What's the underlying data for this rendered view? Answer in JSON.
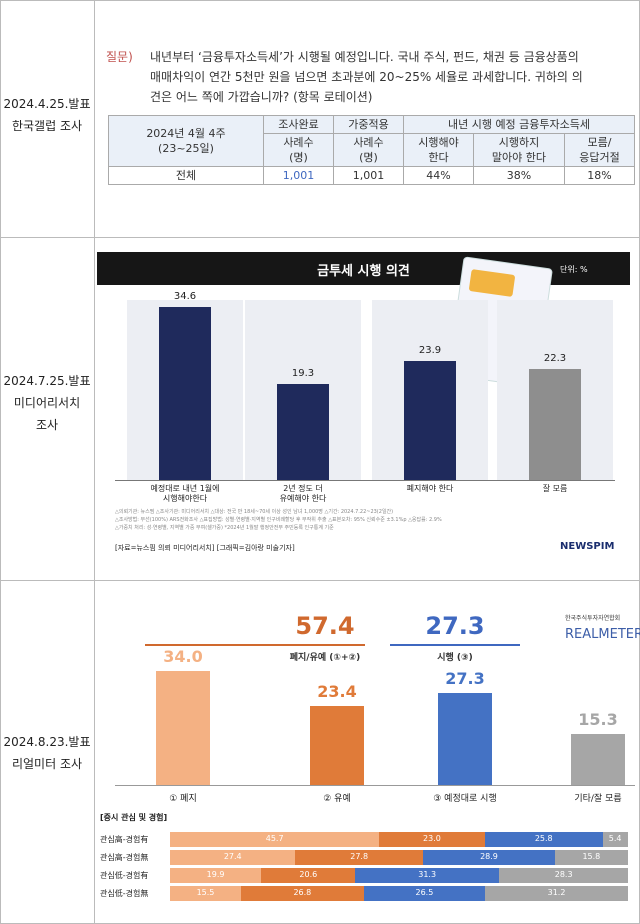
{
  "left_labels": [
    [
      "2024.4.25.발표",
      "한국갤럽 조사"
    ],
    [
      "2024.7.25.발표",
      "미디어리서치",
      "조사"
    ],
    [
      "2024.8.23.발표",
      "리얼미터 조사"
    ]
  ],
  "gallup": {
    "question_label": "질문)",
    "question": "내년부터 ‘금융투자소득세’가 시행될 예정입니다. 국내 주식, 펀드, 채권 등 금융상품의 매매차익이 연간 5천만 원을 넘으면 초과분에 20~25% 세율로 과세합니다. 귀하의 의견은 어느 쪽에 가깝습니까? (항목 로테이션)",
    "table": {
      "period": "2024년 4월 4주\n(23~25일)",
      "col1": "조사완료",
      "col2": "가중적용",
      "group": "내년 시행 예정 금융투자소득세",
      "sub": [
        "사례수\n(명)",
        "사례수\n(명)",
        "시행해야\n한다",
        "시행하지\n말아야 한다",
        "모름/\n응답거절"
      ],
      "row": [
        "전체",
        "1,001",
        "1,001",
        "44%",
        "38%",
        "18%"
      ]
    }
  },
  "chart_data": [
    {
      "type": "bar",
      "title": "금투세 시행 의견",
      "unit": "단위: %",
      "categories": [
        "예정대로 내년 1월에\n시행해야한다",
        "2년 정도 더\n유예해야 한다",
        "폐지해야 한다",
        "잘 모름"
      ],
      "values": [
        34.6,
        19.3,
        23.9,
        22.3
      ],
      "colors": [
        "#1f2a5c",
        "#1f2a5c",
        "#1f2a5c",
        "#8e8e8e"
      ],
      "footnotes": "△의뢰기관: 뉴스핌 △조사기관: 미디어리서치 △대상: 전국 만 18세~70세 이상 성인 남녀 1,000명 △기간: 2024.7.22~23(2일간)\n△조사방법: 무선(100%) ARS전화조사 △표집방법: 성별·연령별·지역별 인구비례할당 후 무작위 추출 △표본오차: 95% 신뢰수준 ±3.1%p △응답률: 2.9%\n△가중치 처리: 성·연령별, 지역별 가중 부여(셀가중) *2024년 1월말 행정안전부 주민등록 인구통계 기준",
      "source": "[자료=뉴스핌 의뢰 미디어리서치] [그래픽=김아랑 미술기자]",
      "logo": "NEWSPIM"
    },
    {
      "type": "bar",
      "categories": [
        "① 폐지",
        "② 유예",
        "③ 예정대로 시행",
        "기타/잘 모름"
      ],
      "values": [
        34,
        23.4,
        27.3,
        15.3
      ],
      "value_labels": [
        "34.0",
        "23.4",
        "27.3",
        "15.3"
      ],
      "colors": [
        "#f4b183",
        "#e07b39",
        "#4472c4",
        "#a6a6a6"
      ],
      "annotations": [
        {
          "value": 57.4,
          "label": "폐지/유예 (①+②)",
          "color": "#d0692e"
        },
        {
          "value": 27.3,
          "label": "시행 (③)",
          "color": "#3f68c0"
        }
      ],
      "logos": [
        "한국주식투자자연합회",
        "REALMETER"
      ]
    },
    {
      "type": "stacked-hbar",
      "title": "[증시 관심 및 경험]",
      "categories": [
        "관심高-경험有",
        "관심高-경험無",
        "관심低-경험有",
        "관심低-경험無"
      ],
      "series": [
        {
          "color": "#f4b183",
          "values": [
            45.7,
            27.4,
            19.9,
            15.5
          ]
        },
        {
          "color": "#e07b39",
          "values": [
            23,
            27.8,
            20.6,
            26.8
          ],
          "value_labels": [
            "23.0",
            "27.8",
            "20.6",
            "26.8"
          ]
        },
        {
          "color": "#4472c4",
          "values": [
            25.8,
            28.9,
            31.3,
            26.5
          ]
        },
        {
          "color": "#a6a6a6",
          "values": [
            5.4,
            15.8,
            28.3,
            31.2
          ]
        }
      ]
    }
  ]
}
